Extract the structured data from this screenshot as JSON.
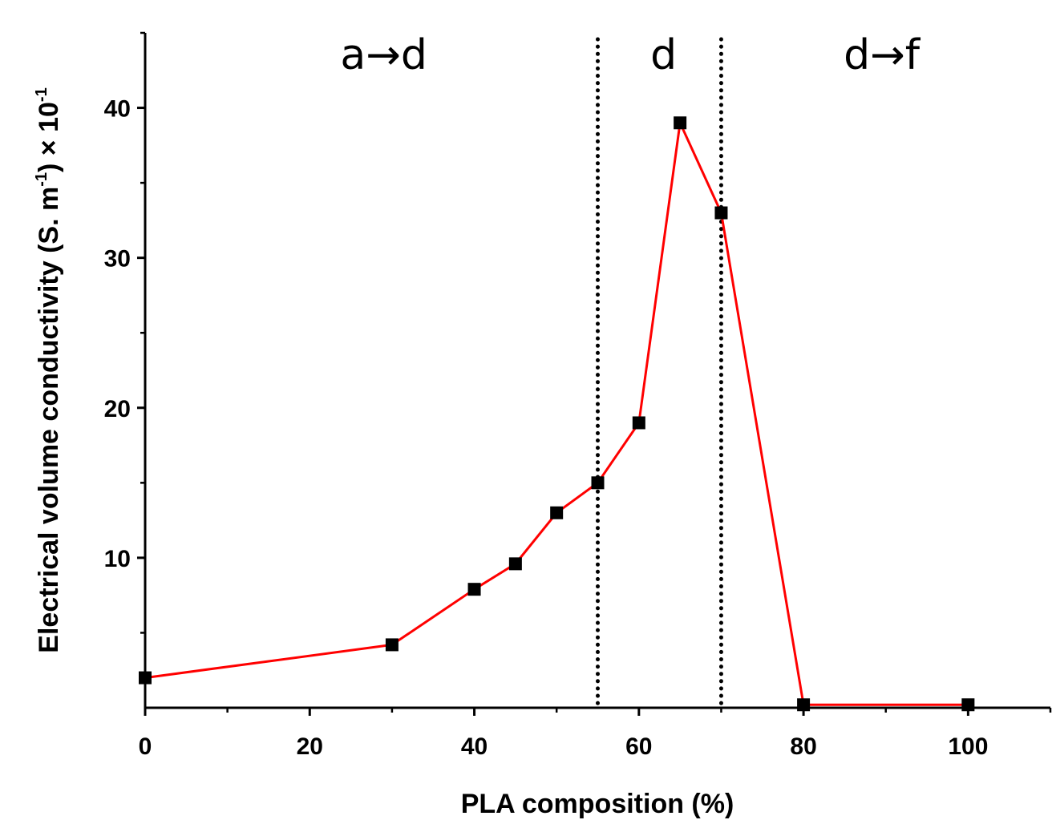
{
  "chart_data": {
    "type": "line",
    "title": "",
    "xlabel": "PLA composition (%)",
    "ylabel_parts": {
      "text1": "Electrical volume conductivity (S. m",
      "sup1": "-1",
      "text2": ") × 10",
      "sup2": "-1"
    },
    "xlim": [
      0,
      110
    ],
    "ylim": [
      0,
      45
    ],
    "x_ticks": [
      0,
      20,
      40,
      60,
      80,
      100
    ],
    "y_ticks": [
      10,
      20,
      30,
      40
    ],
    "grid": false,
    "series": [
      {
        "color": "#ff0000",
        "marker": "square",
        "marker_color": "#000000",
        "x": [
          0,
          30,
          40,
          45,
          50,
          55,
          60,
          65,
          70,
          80,
          100
        ],
        "y": [
          2,
          4.2,
          7.9,
          9.6,
          13,
          15,
          19,
          39,
          33,
          0.2,
          0.2
        ]
      }
    ],
    "vlines": [
      55,
      70
    ],
    "vline_style": "dotted",
    "regions": [
      {
        "label": "a→d",
        "x": 29
      },
      {
        "label": "d",
        "x": 63
      },
      {
        "label": "d→f",
        "x": 89.5
      }
    ]
  }
}
